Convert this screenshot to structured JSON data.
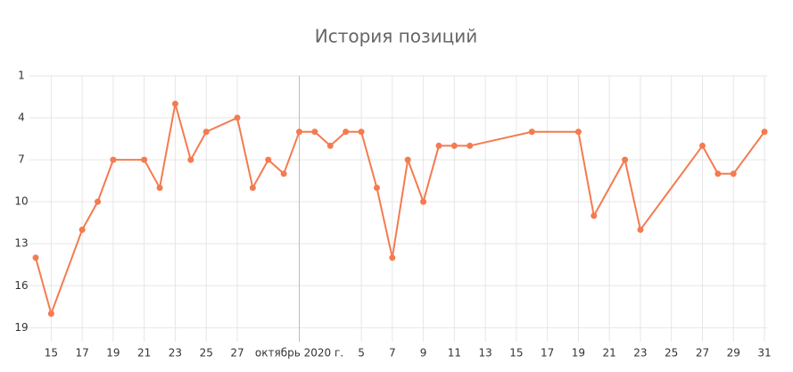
{
  "chart_data": {
    "type": "line",
    "title": "История позиций",
    "x": [
      "2020-09-14",
      "2020-09-15",
      "2020-09-17",
      "2020-09-18",
      "2020-09-19",
      "2020-09-21",
      "2020-09-22",
      "2020-09-23",
      "2020-09-24",
      "2020-09-25",
      "2020-09-27",
      "2020-09-28",
      "2020-09-29",
      "2020-09-30",
      "2020-10-01",
      "2020-10-02",
      "2020-10-03",
      "2020-10-04",
      "2020-10-05",
      "2020-10-06",
      "2020-10-07",
      "2020-10-08",
      "2020-10-09",
      "2020-10-10",
      "2020-10-11",
      "2020-10-12",
      "2020-10-16",
      "2020-10-19",
      "2020-10-20",
      "2020-10-22",
      "2020-10-23",
      "2020-10-27",
      "2020-10-28",
      "2020-10-29",
      "2020-10-31"
    ],
    "values": [
      14,
      18,
      12,
      10,
      7,
      7,
      9,
      3,
      7,
      5,
      4,
      9,
      7,
      8,
      5,
      5,
      6,
      5,
      5,
      9,
      14,
      7,
      10,
      6,
      6,
      6,
      5,
      5,
      11,
      7,
      12,
      6,
      8,
      8,
      5
    ],
    "color": "#f47b50",
    "xlim": [
      "2020-09-14",
      "2020-10-31"
    ],
    "xticks": [
      {
        "value": "2020-09-15",
        "label": "15"
      },
      {
        "value": "2020-09-17",
        "label": "17"
      },
      {
        "value": "2020-09-19",
        "label": "19"
      },
      {
        "value": "2020-09-21",
        "label": "21"
      },
      {
        "value": "2020-09-23",
        "label": "23"
      },
      {
        "value": "2020-09-25",
        "label": "25"
      },
      {
        "value": "2020-09-27",
        "label": "27"
      },
      {
        "value": "2020-10-01",
        "label": "октябрь 2020 г."
      },
      {
        "value": "2020-10-05",
        "label": "5"
      },
      {
        "value": "2020-10-07",
        "label": "7"
      },
      {
        "value": "2020-10-09",
        "label": "9"
      },
      {
        "value": "2020-10-11",
        "label": "11"
      },
      {
        "value": "2020-10-13",
        "label": "13"
      },
      {
        "value": "2020-10-15",
        "label": "15"
      },
      {
        "value": "2020-10-17",
        "label": "17"
      },
      {
        "value": "2020-10-19",
        "label": "19"
      },
      {
        "value": "2020-10-21",
        "label": "21"
      },
      {
        "value": "2020-10-23",
        "label": "23"
      },
      {
        "value": "2020-10-25",
        "label": "25"
      },
      {
        "value": "2020-10-27",
        "label": "27"
      },
      {
        "value": "2020-10-29",
        "label": "29"
      },
      {
        "value": "2020-10-31",
        "label": "31"
      }
    ],
    "ylim": [
      20,
      1
    ],
    "yticks": [
      1,
      4,
      7,
      10,
      13,
      16,
      19
    ],
    "grid": true
  }
}
